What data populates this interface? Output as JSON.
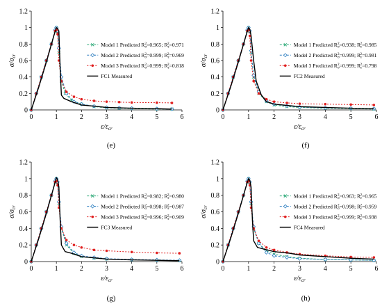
{
  "chart_data": [
    {
      "type": "line",
      "panel": "(e)",
      "xlabel": "ε/ε",
      "xlabel_sub": "cr",
      "ylabel": "σ/σ",
      "ylabel_sub": "cr",
      "xlim": [
        0,
        6
      ],
      "ylim": [
        0,
        1.2
      ],
      "xticks": [
        "0",
        "1",
        "2",
        "3",
        "4",
        "5",
        "6"
      ],
      "yticks": [
        "0",
        "0.2",
        "0.4",
        "0.6",
        "0.8",
        "1",
        "1.2"
      ],
      "legend_position": "right",
      "series": [
        {
          "name": "Model 1 Predicted",
          "r2": "0.965",
          "r2b": "0.971",
          "color": "#2aa876",
          "marker": "x",
          "dash": "3,2",
          "x": [
            0,
            0.2,
            0.4,
            0.6,
            0.8,
            0.95,
            1.0,
            1.05,
            1.1,
            1.2,
            1.35,
            1.6,
            2.0,
            2.5,
            3.0,
            3.5,
            4.0,
            5.0,
            5.6
          ],
          "y": [
            0,
            0.2,
            0.4,
            0.6,
            0.8,
            0.96,
            1.0,
            0.95,
            0.7,
            0.35,
            0.2,
            0.12,
            0.07,
            0.04,
            0.025,
            0.02,
            0.015,
            0.01,
            0.01
          ]
        },
        {
          "name": "Model 2 Predicted",
          "r2": "0.999",
          "r2b": "0.969",
          "color": "#2e7fc1",
          "marker": "diamond",
          "dash": "3,2",
          "x": [
            0,
            0.2,
            0.4,
            0.6,
            0.8,
            0.95,
            1.0,
            1.05,
            1.1,
            1.2,
            1.4,
            1.7,
            2.0,
            2.5,
            3.0,
            3.5,
            4.0,
            5.0,
            5.6
          ],
          "y": [
            0,
            0.2,
            0.4,
            0.6,
            0.8,
            0.97,
            1.0,
            0.96,
            0.75,
            0.4,
            0.2,
            0.1,
            0.07,
            0.045,
            0.03,
            0.025,
            0.02,
            0.015,
            0.01
          ]
        },
        {
          "name": "Model 3 Predicted",
          "r2": "0.999",
          "r2b": "0.818",
          "color": "#e02020",
          "marker": "dot",
          "dash": "2,2",
          "x": [
            0,
            0.2,
            0.4,
            0.6,
            0.8,
            0.95,
            1.0,
            1.05,
            1.1,
            1.2,
            1.4,
            1.7,
            2.0,
            2.5,
            3.0,
            3.5,
            4.0,
            5.0,
            5.6
          ],
          "y": [
            0,
            0.2,
            0.4,
            0.6,
            0.8,
            0.96,
            0.97,
            0.92,
            0.6,
            0.35,
            0.22,
            0.16,
            0.13,
            0.11,
            0.1,
            0.095,
            0.09,
            0.088,
            0.085
          ]
        },
        {
          "name": "FC1 Measured",
          "color": "#000000",
          "marker": "none",
          "dash": "",
          "x": [
            0,
            0.3,
            0.6,
            0.9,
            1.0,
            1.05,
            1.1,
            1.15,
            1.2,
            1.3,
            1.6,
            2.0,
            3.0,
            4.0,
            5.0,
            5.6
          ],
          "y": [
            0,
            0.28,
            0.58,
            0.9,
            1.0,
            0.99,
            0.95,
            0.5,
            0.18,
            0.14,
            0.1,
            0.06,
            0.03,
            0.02,
            0.015,
            0.01
          ]
        }
      ]
    },
    {
      "type": "line",
      "panel": "(f)",
      "xlabel": "ε/ε",
      "xlabel_sub": "cr",
      "ylabel": "σ/σ",
      "ylabel_sub": "cr",
      "xlim": [
        0,
        6
      ],
      "ylim": [
        0,
        1.2
      ],
      "xticks": [
        "0",
        "1",
        "2",
        "3",
        "4",
        "5",
        "6"
      ],
      "yticks": [
        "0",
        "0.2",
        "0.4",
        "0.6",
        "0.8",
        "1",
        "1.2"
      ],
      "legend_position": "right",
      "series": [
        {
          "name": "Model 1 Predicted",
          "r2": "0.938",
          "r2b": "0.985",
          "color": "#2aa876",
          "marker": "x",
          "dash": "3,2",
          "x": [
            0,
            0.2,
            0.4,
            0.6,
            0.8,
            0.95,
            1.0,
            1.05,
            1.1,
            1.2,
            1.4,
            1.7,
            2.0,
            2.5,
            3.0,
            4.0,
            5.0,
            5.9
          ],
          "y": [
            0,
            0.2,
            0.4,
            0.6,
            0.8,
            0.96,
            1.0,
            0.95,
            0.7,
            0.4,
            0.2,
            0.1,
            0.06,
            0.04,
            0.03,
            0.02,
            0.015,
            0.01
          ]
        },
        {
          "name": "Model 2 Predicted",
          "r2": "0.999",
          "r2b": "0.981",
          "color": "#2e7fc1",
          "marker": "diamond",
          "dash": "3,2",
          "x": [
            0,
            0.2,
            0.4,
            0.6,
            0.8,
            0.95,
            1.0,
            1.05,
            1.1,
            1.2,
            1.4,
            1.7,
            2.0,
            2.5,
            3.0,
            4.0,
            5.0,
            5.9
          ],
          "y": [
            0,
            0.2,
            0.4,
            0.6,
            0.8,
            0.97,
            1.0,
            0.96,
            0.72,
            0.42,
            0.22,
            0.11,
            0.07,
            0.05,
            0.035,
            0.025,
            0.02,
            0.015
          ]
        },
        {
          "name": "Model 3 Predicted",
          "r2": "0.999",
          "r2b": "0.798",
          "color": "#e02020",
          "marker": "dot",
          "dash": "2,2",
          "x": [
            0,
            0.2,
            0.4,
            0.6,
            0.8,
            0.95,
            1.0,
            1.05,
            1.1,
            1.2,
            1.4,
            1.7,
            2.0,
            2.5,
            3.0,
            4.0,
            5.0,
            5.9
          ],
          "y": [
            0,
            0.2,
            0.4,
            0.6,
            0.8,
            0.96,
            0.97,
            0.9,
            0.6,
            0.35,
            0.2,
            0.13,
            0.1,
            0.085,
            0.075,
            0.07,
            0.065,
            0.06
          ]
        },
        {
          "name": "FC2 Measured",
          "color": "#000000",
          "marker": "none",
          "dash": "",
          "x": [
            0,
            0.3,
            0.6,
            0.9,
            1.0,
            1.05,
            1.1,
            1.2,
            1.3,
            1.5,
            1.7,
            2.0,
            3.0,
            4.0,
            5.0,
            5.9
          ],
          "y": [
            0,
            0.28,
            0.58,
            0.9,
            1.0,
            0.98,
            0.9,
            0.6,
            0.35,
            0.18,
            0.1,
            0.07,
            0.04,
            0.03,
            0.02,
            0.015
          ]
        }
      ]
    },
    {
      "type": "line",
      "panel": "(g)",
      "xlabel": "ε/ε",
      "xlabel_sub": "cr",
      "ylabel": "σ/σ",
      "ylabel_sub": "cr",
      "xlim": [
        0,
        6
      ],
      "ylim": [
        0,
        1.2
      ],
      "xticks": [
        "0",
        "1",
        "2",
        "3",
        "4",
        "5",
        "6"
      ],
      "yticks": [
        "0",
        "0.2",
        "0.4",
        "0.6",
        "0.8",
        "1",
        "1.2"
      ],
      "legend_position": "right",
      "series": [
        {
          "name": "Model 1 Predicted",
          "r2": "0.982",
          "r2b": "0.980",
          "color": "#2aa876",
          "marker": "x",
          "dash": "3,2",
          "x": [
            0,
            0.2,
            0.4,
            0.6,
            0.8,
            0.95,
            1.0,
            1.05,
            1.1,
            1.2,
            1.4,
            1.7,
            2.0,
            2.5,
            3.0,
            4.0,
            5.0,
            5.9
          ],
          "y": [
            0,
            0.2,
            0.4,
            0.6,
            0.8,
            0.96,
            1.0,
            0.95,
            0.7,
            0.4,
            0.2,
            0.1,
            0.06,
            0.04,
            0.03,
            0.02,
            0.015,
            0.01
          ]
        },
        {
          "name": "Model 2 Predicted",
          "r2": "0.998",
          "r2b": "0.987",
          "color": "#2e7fc1",
          "marker": "diamond",
          "dash": "3,2",
          "x": [
            0,
            0.2,
            0.4,
            0.6,
            0.8,
            0.95,
            1.0,
            1.05,
            1.1,
            1.2,
            1.4,
            1.7,
            2.0,
            2.5,
            3.0,
            4.0,
            5.0,
            5.9
          ],
          "y": [
            0,
            0.2,
            0.4,
            0.6,
            0.8,
            0.97,
            1.0,
            0.96,
            0.72,
            0.42,
            0.22,
            0.11,
            0.07,
            0.05,
            0.035,
            0.025,
            0.02,
            0.015
          ]
        },
        {
          "name": "Model 3 Predicted",
          "r2": "0.996",
          "r2b": "0.909",
          "color": "#e02020",
          "marker": "dot",
          "dash": "2,2",
          "x": [
            0,
            0.2,
            0.4,
            0.6,
            0.8,
            0.95,
            1.0,
            1.05,
            1.1,
            1.2,
            1.4,
            1.7,
            2.0,
            2.5,
            3.0,
            4.0,
            5.0,
            5.9
          ],
          "y": [
            0,
            0.2,
            0.4,
            0.6,
            0.8,
            0.96,
            0.97,
            0.92,
            0.65,
            0.4,
            0.26,
            0.2,
            0.17,
            0.14,
            0.13,
            0.115,
            0.105,
            0.1
          ]
        },
        {
          "name": "FC3 Measured",
          "color": "#000000",
          "marker": "none",
          "dash": "",
          "x": [
            0,
            0.3,
            0.6,
            0.9,
            1.0,
            1.05,
            1.1,
            1.15,
            1.2,
            1.35,
            1.6,
            2.0,
            3.0,
            4.0,
            5.0,
            5.9
          ],
          "y": [
            0,
            0.28,
            0.58,
            0.9,
            1.01,
            0.99,
            0.9,
            0.5,
            0.2,
            0.12,
            0.1,
            0.06,
            0.03,
            0.02,
            0.015,
            0.01
          ]
        }
      ]
    },
    {
      "type": "line",
      "panel": "(h)",
      "xlabel": "ε/ε",
      "xlabel_sub": "cr",
      "ylabel": "σ/σ",
      "ylabel_sub": "cr",
      "xlim": [
        0,
        6
      ],
      "ylim": [
        0,
        1.2
      ],
      "xticks": [
        "0",
        "1",
        "2",
        "3",
        "4",
        "5",
        "6"
      ],
      "yticks": [
        "0",
        "0.2",
        "0.4",
        "0.6",
        "0.8",
        "1",
        "1.2"
      ],
      "legend_position": "right",
      "series": [
        {
          "name": "Model 1 Predicted",
          "r2": "0.963",
          "r2b": "0.965",
          "color": "#2aa876",
          "marker": "x",
          "dash": "3,2",
          "x": [
            0,
            0.2,
            0.4,
            0.6,
            0.8,
            0.95,
            1.0,
            1.05,
            1.1,
            1.2,
            1.4,
            1.7,
            2.0,
            2.5,
            3.0,
            4.0,
            5.0,
            5.9
          ],
          "y": [
            0,
            0.2,
            0.4,
            0.6,
            0.8,
            0.96,
            1.0,
            0.95,
            0.7,
            0.4,
            0.22,
            0.13,
            0.09,
            0.06,
            0.04,
            0.025,
            0.02,
            0.015
          ]
        },
        {
          "name": "Model 2 Predicted",
          "r2": "0.998",
          "r2b": "0.959",
          "color": "#2e7fc1",
          "marker": "diamond",
          "dash": "3,2",
          "x": [
            0,
            0.2,
            0.4,
            0.6,
            0.8,
            0.95,
            1.0,
            1.05,
            1.1,
            1.2,
            1.4,
            1.7,
            2.0,
            2.5,
            3.0,
            4.0,
            5.0,
            5.9
          ],
          "y": [
            0,
            0.2,
            0.4,
            0.6,
            0.8,
            0.97,
            1.0,
            0.96,
            0.72,
            0.42,
            0.22,
            0.11,
            0.07,
            0.05,
            0.035,
            0.025,
            0.02,
            0.015
          ]
        },
        {
          "name": "Model 3 Predicted",
          "r2": "0.999",
          "r2b": "0.938",
          "color": "#e02020",
          "marker": "dot",
          "dash": "2,2",
          "x": [
            0,
            0.2,
            0.4,
            0.6,
            0.8,
            0.95,
            1.0,
            1.05,
            1.1,
            1.2,
            1.4,
            1.7,
            2.0,
            2.5,
            3.0,
            4.0,
            5.0,
            5.9
          ],
          "y": [
            0,
            0.2,
            0.4,
            0.6,
            0.8,
            0.96,
            0.97,
            0.92,
            0.65,
            0.4,
            0.25,
            0.17,
            0.14,
            0.11,
            0.09,
            0.07,
            0.055,
            0.05
          ]
        },
        {
          "name": "FC4 Measured",
          "color": "#000000",
          "marker": "none",
          "dash": "",
          "x": [
            0,
            0.3,
            0.6,
            0.9,
            1.0,
            1.05,
            1.1,
            1.15,
            1.2,
            1.35,
            1.6,
            2.0,
            2.6,
            3.0,
            4.0,
            5.0,
            5.9
          ],
          "y": [
            0,
            0.28,
            0.58,
            0.9,
            1.0,
            0.98,
            0.9,
            0.5,
            0.25,
            0.17,
            0.15,
            0.12,
            0.1,
            0.08,
            0.06,
            0.04,
            0.03
          ]
        }
      ]
    }
  ]
}
